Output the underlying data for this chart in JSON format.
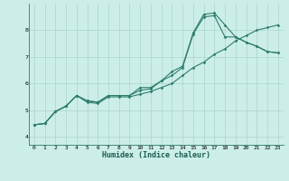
{
  "xlabel": "Humidex (Indice chaleur)",
  "bg_color": "#cceee8",
  "grid_color": "#aad4cc",
  "line_color": "#2e7d6e",
  "x_ticks": [
    0,
    1,
    2,
    3,
    4,
    5,
    6,
    7,
    8,
    9,
    10,
    11,
    12,
    13,
    14,
    15,
    16,
    17,
    18,
    19,
    20,
    21,
    22,
    23
  ],
  "y_ticks": [
    4,
    5,
    6,
    7,
    8
  ],
  "xlim": [
    -0.5,
    23.5
  ],
  "ylim": [
    3.7,
    9.0
  ],
  "line1_x": [
    0,
    1,
    2,
    3,
    4,
    5,
    6,
    7,
    8,
    9,
    10,
    11,
    12,
    13,
    14,
    15,
    16,
    17,
    18,
    19,
    20,
    21,
    22,
    23
  ],
  "line1_y": [
    4.45,
    4.5,
    4.95,
    5.15,
    5.55,
    5.35,
    5.3,
    5.55,
    5.55,
    5.55,
    5.85,
    5.85,
    6.1,
    6.45,
    6.65,
    7.9,
    8.6,
    8.65,
    8.2,
    7.75,
    7.55,
    7.4,
    7.2,
    7.15
  ],
  "line2_x": [
    0,
    1,
    2,
    3,
    4,
    5,
    6,
    7,
    8,
    9,
    10,
    11,
    12,
    13,
    14,
    15,
    16,
    17,
    18,
    19,
    20,
    21,
    22,
    23
  ],
  "line2_y": [
    4.45,
    4.5,
    4.95,
    5.15,
    5.55,
    5.35,
    5.3,
    5.55,
    5.55,
    5.55,
    5.75,
    5.8,
    6.1,
    6.3,
    6.6,
    7.85,
    8.5,
    8.55,
    7.75,
    7.75,
    7.55,
    7.4,
    7.2,
    7.15
  ],
  "line3_x": [
    0,
    1,
    2,
    3,
    4,
    5,
    6,
    7,
    8,
    9,
    10,
    11,
    12,
    13,
    14,
    15,
    16,
    17,
    18,
    19,
    20,
    21,
    22,
    23
  ],
  "line3_y": [
    4.45,
    4.5,
    4.95,
    5.15,
    5.55,
    5.3,
    5.25,
    5.5,
    5.5,
    5.5,
    5.6,
    5.7,
    5.85,
    6.0,
    6.3,
    6.6,
    6.8,
    7.1,
    7.3,
    7.6,
    7.8,
    8.0,
    8.1,
    8.2
  ],
  "marker": "D",
  "markersize": 1.8,
  "linewidth": 0.8,
  "tick_fontsize": 4.5,
  "xlabel_fontsize": 6.0
}
